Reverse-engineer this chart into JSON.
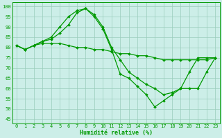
{
  "xlabel": "Humidité relative (%)",
  "background_color": "#cceee8",
  "grid_color": "#99ccbb",
  "line_color": "#009900",
  "marker": "D",
  "markersize": 2.0,
  "linewidth": 0.9,
  "xlim": [
    -0.5,
    23.5
  ],
  "ylim": [
    43,
    102
  ],
  "yticks": [
    45,
    50,
    55,
    60,
    65,
    70,
    75,
    80,
    85,
    90,
    95,
    100
  ],
  "xticks": [
    0,
    1,
    2,
    3,
    4,
    5,
    6,
    7,
    8,
    9,
    10,
    11,
    12,
    13,
    14,
    15,
    16,
    17,
    18,
    19,
    20,
    21,
    22,
    23
  ],
  "line1_x": [
    0,
    1,
    2,
    3,
    4,
    5,
    6,
    7,
    8,
    9,
    10,
    11,
    12,
    13,
    14,
    15,
    16,
    17,
    18,
    19,
    20,
    21,
    22,
    23
  ],
  "line1_y": [
    81,
    79,
    81,
    83,
    85,
    90,
    95,
    98,
    99,
    95,
    89,
    79,
    67,
    65,
    61,
    57,
    51,
    54,
    57,
    60,
    68,
    75,
    75,
    75
  ],
  "line2_x": [
    0,
    1,
    2,
    3,
    4,
    5,
    6,
    7,
    8,
    9,
    10,
    11,
    12,
    13,
    14,
    15,
    16,
    17,
    18,
    19,
    20,
    21,
    22,
    23
  ],
  "line2_y": [
    81,
    79,
    81,
    83,
    84,
    87,
    91,
    97,
    99,
    96,
    90,
    80,
    74,
    68,
    65,
    62,
    60,
    57,
    58,
    60,
    60,
    60,
    68,
    75
  ],
  "line3_x": [
    0,
    1,
    2,
    3,
    4,
    5,
    6,
    7,
    8,
    9,
    10,
    11,
    12,
    13,
    14,
    15,
    16,
    17,
    18,
    19,
    20,
    21,
    22,
    23
  ],
  "line3_y": [
    81,
    79,
    81,
    82,
    82,
    82,
    81,
    80,
    80,
    79,
    79,
    78,
    77,
    77,
    76,
    76,
    75,
    74,
    74,
    74,
    74,
    74,
    74,
    75
  ],
  "tick_fontsize": 5.0,
  "xlabel_fontsize": 6.0
}
